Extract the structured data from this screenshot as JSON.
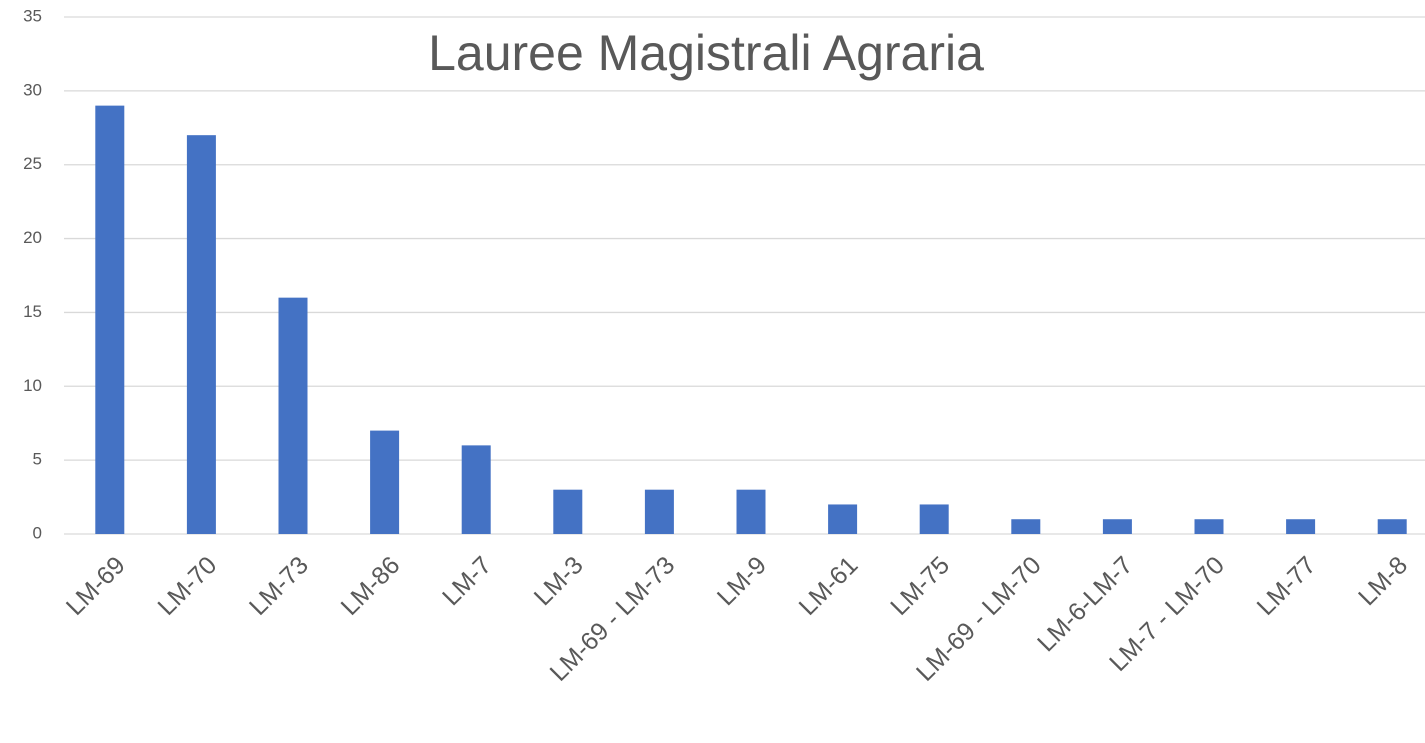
{
  "chart_data": {
    "type": "bar",
    "title": "Lauree Magistrali Agraria",
    "categories": [
      "LM-69",
      "LM-70",
      "LM-73",
      "LM-86",
      "LM-7",
      "LM-3",
      "LM-69 - LM-73",
      "LM-9",
      "LM-61",
      "LM-75",
      "LM-69 - LM-70",
      "LM-6-LM-7",
      "LM-7 - LM-70",
      "LM-77",
      "LM-8"
    ],
    "values": [
      29,
      27,
      16,
      7,
      6,
      3,
      3,
      3,
      2,
      2,
      1,
      1,
      1,
      1,
      1
    ],
    "color": "#4472c4",
    "ylim": [
      0,
      35
    ],
    "yticks": [
      0,
      5,
      10,
      15,
      20,
      25,
      30,
      35
    ],
    "grid": true
  }
}
